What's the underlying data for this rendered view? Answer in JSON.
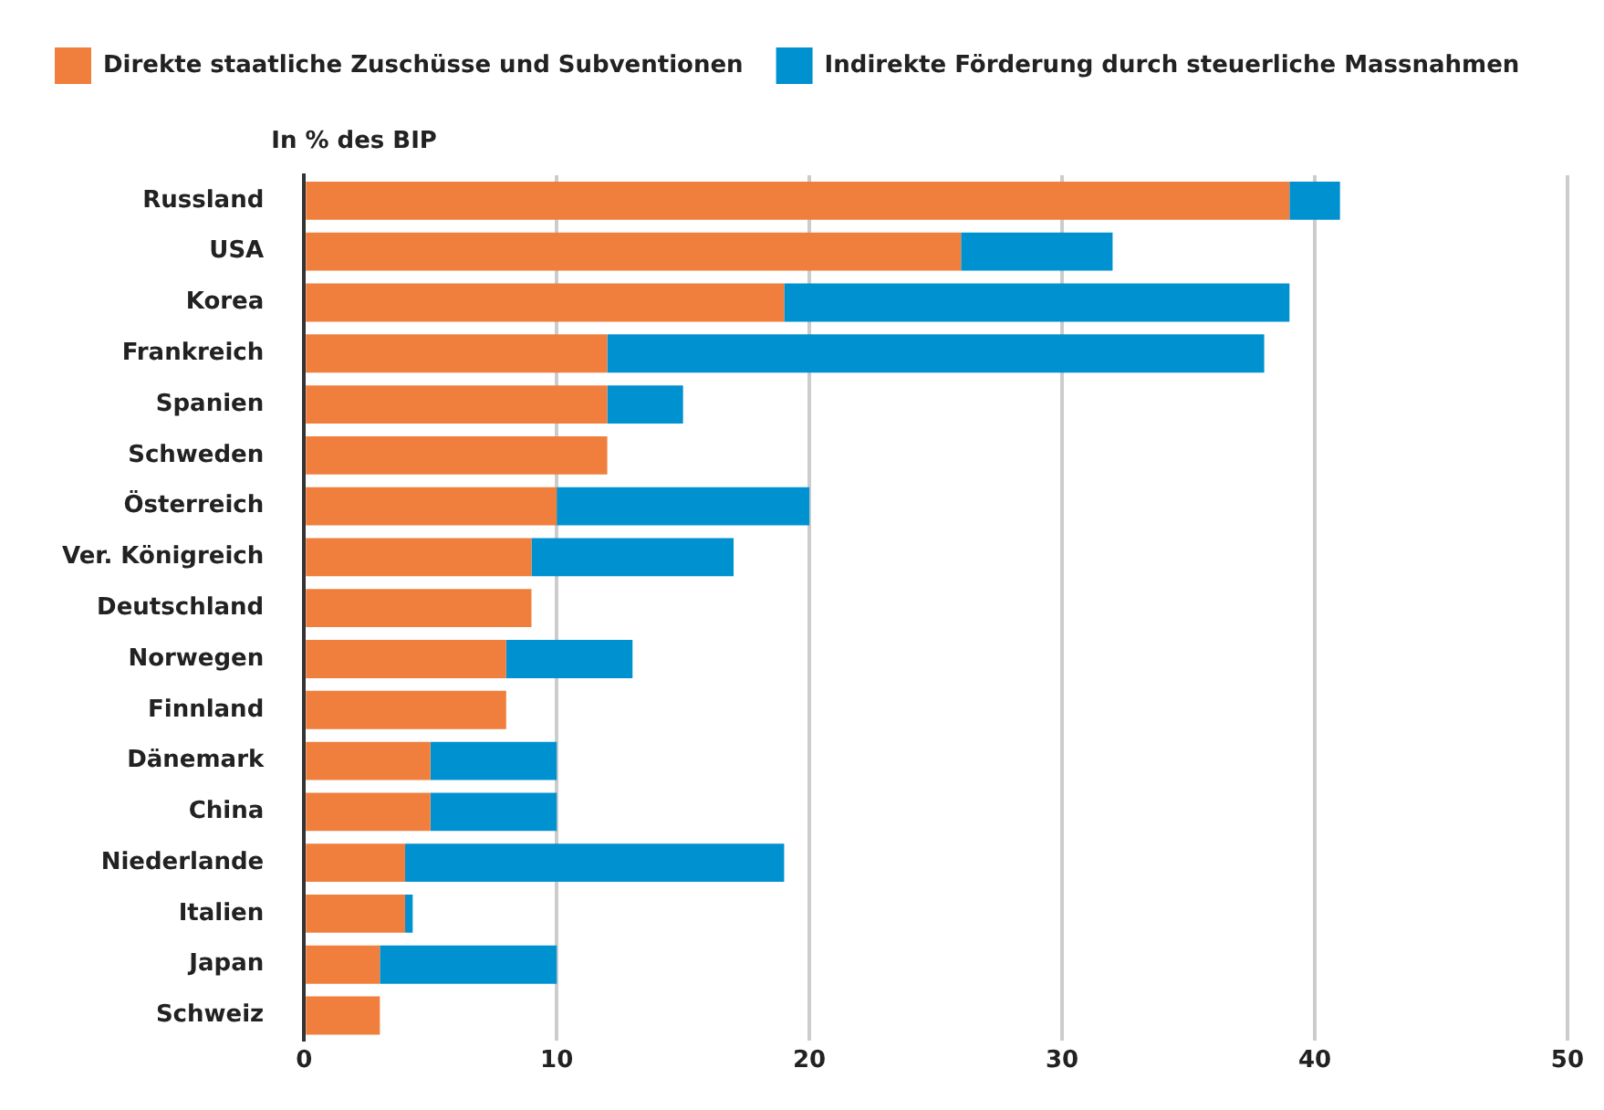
{
  "chart_data": {
    "type": "bar",
    "orientation": "horizontal",
    "stacked": true,
    "xlabel": "In % des BIP",
    "categories": [
      "Russland",
      "USA",
      "Korea",
      "Frankreich",
      "Spanien",
      "Schweden",
      "Österreich",
      "Ver. Königreich",
      "Deutschland",
      "Norwegen",
      "Finnland",
      "Dänemark",
      "China",
      "Niederlande",
      "Italien",
      "Japan",
      "Schweiz"
    ],
    "series": [
      {
        "name": "Direkte staatliche Zuschüsse und Subventionen",
        "color": "#f07e3c",
        "values": [
          39,
          26,
          19,
          12,
          12,
          12,
          10,
          9,
          9,
          8,
          8,
          5,
          5,
          4,
          4,
          3,
          3
        ]
      },
      {
        "name": "Indirekte Förderung durch steuerliche Massnahmen",
        "color": "#0091d0",
        "values": [
          2,
          6,
          20,
          26,
          3,
          0,
          10,
          8,
          0,
          5,
          0,
          5,
          5,
          15,
          0.3,
          7,
          0
        ]
      }
    ],
    "xlim": [
      0,
      50
    ],
    "xticks": [
      0,
      10,
      20,
      30,
      40,
      50
    ],
    "grid": "x",
    "legend": "top"
  }
}
